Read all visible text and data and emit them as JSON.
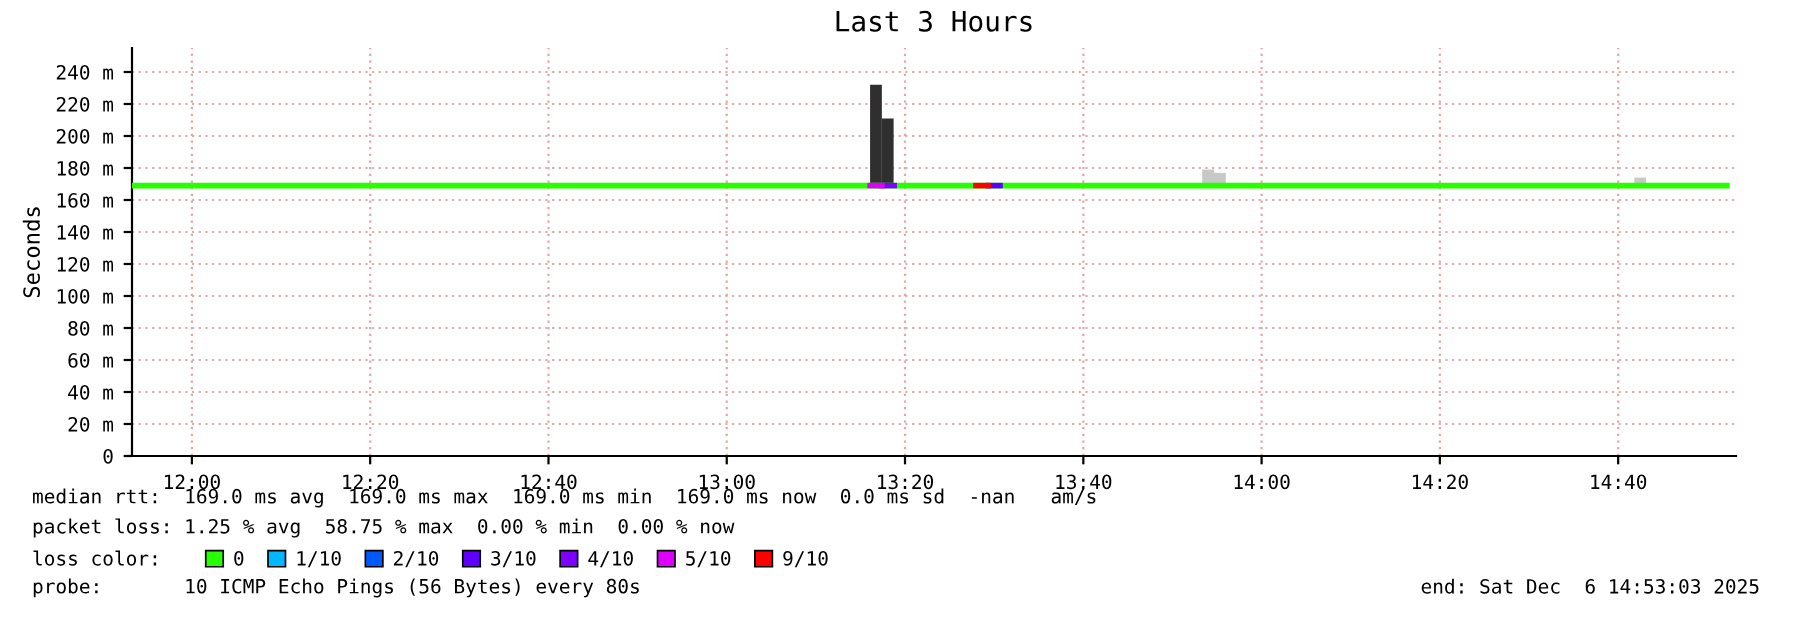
{
  "chart_data": {
    "type": "line",
    "title": "Last 3 Hours",
    "ylabel": "Seconds",
    "xlim": [
      11.888,
      14.887
    ],
    "xticks": [
      {
        "value": 12.0,
        "label": "12:00"
      },
      {
        "value": 12.3333,
        "label": "12:20"
      },
      {
        "value": 12.6667,
        "label": "12:40"
      },
      {
        "value": 13.0,
        "label": "13:00"
      },
      {
        "value": 13.3333,
        "label": "13:20"
      },
      {
        "value": 13.6667,
        "label": "13:40"
      },
      {
        "value": 14.0,
        "label": "14:00"
      },
      {
        "value": 14.3333,
        "label": "14:20"
      },
      {
        "value": 14.6667,
        "label": "14:40"
      }
    ],
    "ylim": [
      0,
      255
    ],
    "yticks": [
      0,
      {
        "value": 20,
        "label": "20 m"
      },
      {
        "value": 40,
        "label": "40 m"
      },
      {
        "value": 60,
        "label": "60 m"
      },
      {
        "value": 80,
        "label": "80 m"
      },
      {
        "value": 100,
        "label": "100 m"
      },
      {
        "value": 120,
        "label": "120 m"
      },
      {
        "value": 140,
        "label": "140 m"
      },
      {
        "value": 160,
        "label": "160 m"
      },
      {
        "value": 180,
        "label": "180 m"
      },
      {
        "value": 200,
        "label": "200 m"
      },
      {
        "value": 220,
        "label": "220 m"
      },
      {
        "value": 240,
        "label": "240 m"
      }
    ],
    "grid": true,
    "legend": "bottom",
    "legend_title": "loss color:",
    "series": [
      {
        "type": "bar",
        "x": [
          13.279,
          13.301,
          13.9,
          13.922,
          14.708
        ],
        "base": [
          169,
          169,
          169,
          169,
          169
        ],
        "values": [
          63,
          42,
          10,
          8,
          5
        ],
        "colors": [
          "#2f2f2f",
          "#2f2f2f",
          "#c8c8c8",
          "#c8c8c8",
          "#c8c8c8"
        ]
      },
      {
        "name": "0",
        "color": "#26ff00",
        "x": [
          11.888,
          14.87
        ],
        "values": [
          169,
          169
        ]
      },
      {
        "name": "1/10",
        "color": "#00b8ff"
      },
      {
        "name": "2/10",
        "color": "#0059ff"
      },
      {
        "name": "3/10",
        "color": "#5e00ff",
        "x": [
          13.489,
          13.511
        ],
        "values": [
          169,
          169
        ]
      },
      {
        "name": "4/10",
        "color": "#7e00ff",
        "x": [
          13.29,
          13.313
        ],
        "values": [
          169,
          169
        ]
      },
      {
        "name": "5/10",
        "color": "#dd00ff",
        "x": [
          13.268,
          13.29
        ],
        "values": [
          169,
          169
        ]
      },
      {
        "name": "9/10",
        "color": "#ff0000",
        "x": [
          13.466,
          13.489
        ],
        "values": [
          169,
          169
        ]
      }
    ],
    "annotations": [
      "median rtt:  169.0 ms avg  169.0 ms max  169.0 ms min  169.0 ms now  0.0 ms sd  -nan   am/s",
      "packet loss: 1.25 % avg  58.75 % max  0.00 % min  0.00 % now",
      "probe:       10 ICMP Echo Pings (56 Bytes) every 80s",
      "end: Sat Dec  6 14:53:03 2025"
    ]
  }
}
